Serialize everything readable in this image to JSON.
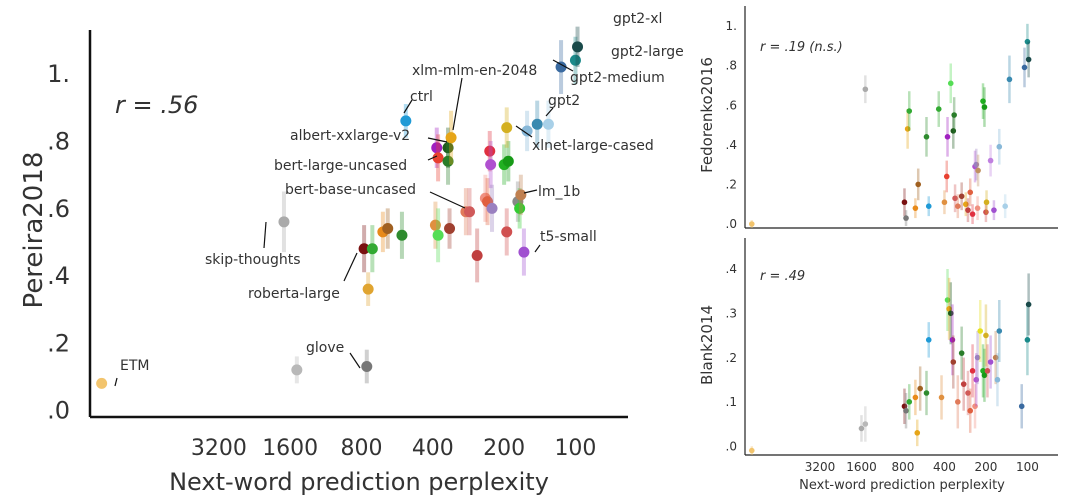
{
  "chart_data": [
    {
      "type": "scatter",
      "panel": "main",
      "xlabel": "Next-word prediction perplexity",
      "ylabel": "Pereira2018",
      "annotation": "r = .56",
      "x_scale": "log-reversed",
      "xticks": [
        "3200",
        "1600",
        "800",
        "400",
        "200",
        "100"
      ],
      "xtick_values": [
        3200,
        1600,
        800,
        400,
        200,
        100
      ],
      "yticks": [
        ".0",
        ".2",
        ".4",
        ".6",
        ".8",
        "1."
      ],
      "ytick_values": [
        0,
        0.2,
        0.4,
        0.6,
        0.8,
        1.0
      ],
      "ylim": [
        -0.02,
        1.13
      ],
      "xlim": [
        11200,
        60
      ],
      "points": [
        {
          "x": 10000,
          "y": 0.08,
          "err": 0.01,
          "color": "#f2c46d",
          "label": "ETM"
        },
        {
          "x": 1500,
          "y": 0.12,
          "err": 0.04,
          "color": "#b8b8b8",
          "label": ""
        },
        {
          "x": 1700,
          "y": 0.56,
          "err": 0.09,
          "color": "#aaaaaa",
          "label": "skip-thoughts"
        },
        {
          "x": 760,
          "y": 0.13,
          "err": 0.05,
          "color": "#777777",
          "label": "glove"
        },
        {
          "x": 780,
          "y": 0.48,
          "err": 0.07,
          "color": "#7a1010",
          "label": "roberta-large"
        },
        {
          "x": 750,
          "y": 0.36,
          "err": 0.05,
          "color": "#e0a430",
          "label": ""
        },
        {
          "x": 720,
          "y": 0.48,
          "err": 0.07,
          "color": "#33aa33",
          "label": ""
        },
        {
          "x": 650,
          "y": 0.53,
          "err": 0.06,
          "color": "#e88a1a",
          "label": ""
        },
        {
          "x": 620,
          "y": 0.54,
          "err": 0.06,
          "color": "#a06020",
          "label": ""
        },
        {
          "x": 540,
          "y": 0.52,
          "err": 0.07,
          "color": "#2e8b2e",
          "label": ""
        },
        {
          "x": 520,
          "y": 0.86,
          "err": 0.05,
          "color": "#1f9ad6",
          "label": "ctrl"
        },
        {
          "x": 390,
          "y": 0.55,
          "err": 0.07,
          "color": "#e09040",
          "label": ""
        },
        {
          "x": 380,
          "y": 0.52,
          "err": 0.08,
          "color": "#55dd55",
          "label": ""
        },
        {
          "x": 385,
          "y": 0.78,
          "err": 0.06,
          "color": "#a020c0",
          "label": ""
        },
        {
          "x": 380,
          "y": 0.75,
          "err": 0.07,
          "color": "#e84030",
          "label": ""
        },
        {
          "x": 345,
          "y": 0.78,
          "err": 0.06,
          "color": "#1e5a1e",
          "label": ""
        },
        {
          "x": 345,
          "y": 0.74,
          "err": 0.07,
          "color": "#2a7d2a",
          "label": ""
        },
        {
          "x": 335,
          "y": 0.81,
          "err": 0.08,
          "color": "#e6a517",
          "label": ""
        },
        {
          "x": 340,
          "y": 0.54,
          "err": 0.06,
          "color": "#a04030",
          "label": ""
        },
        {
          "x": 290,
          "y": 0.59,
          "err": 0.07,
          "color": "#e07a5a",
          "label": ""
        },
        {
          "x": 280,
          "y": 0.59,
          "err": 0.07,
          "color": "#d05a5a",
          "label": ""
        },
        {
          "x": 260,
          "y": 0.46,
          "err": 0.08,
          "color": "#c04040",
          "label": ""
        },
        {
          "x": 240,
          "y": 0.63,
          "err": 0.07,
          "color": "#f09080",
          "label": ""
        },
        {
          "x": 235,
          "y": 0.62,
          "err": 0.07,
          "color": "#e06040",
          "label": ""
        },
        {
          "x": 230,
          "y": 0.77,
          "err": 0.06,
          "color": "#e03040",
          "label": ""
        },
        {
          "x": 228,
          "y": 0.73,
          "err": 0.07,
          "color": "#b050d0",
          "label": ""
        },
        {
          "x": 225,
          "y": 0.6,
          "err": 0.07,
          "color": "#9a80c0",
          "label": ""
        },
        {
          "x": 200,
          "y": 0.73,
          "err": 0.06,
          "color": "#22b022",
          "label": ""
        },
        {
          "x": 192,
          "y": 0.74,
          "err": 0.06,
          "color": "#179a17",
          "label": ""
        },
        {
          "x": 195,
          "y": 0.53,
          "err": 0.07,
          "color": "#d05050",
          "label": ""
        },
        {
          "x": 195,
          "y": 0.84,
          "err": 0.06,
          "color": "#d4b020",
          "label": "xlnet-large-cased"
        },
        {
          "x": 175,
          "y": 0.62,
          "err": 0.06,
          "color": "#888888",
          "label": ""
        },
        {
          "x": 172,
          "y": 0.6,
          "err": 0.06,
          "color": "#33cc33",
          "label": ""
        },
        {
          "x": 170,
          "y": 0.64,
          "err": 0.06,
          "color": "#c08050",
          "label": "lm_1b"
        },
        {
          "x": 165,
          "y": 0.47,
          "err": 0.07,
          "color": "#a050d0",
          "label": "t5-small"
        },
        {
          "x": 160,
          "y": 0.83,
          "err": 0.06,
          "color": "#88b8d8",
          "label": ""
        },
        {
          "x": 145,
          "y": 0.85,
          "err": 0.07,
          "color": "#3a8ab0",
          "label": "gpt2"
        },
        {
          "x": 130,
          "y": 0.85,
          "err": 0.07,
          "color": "#a8d0e8",
          "label": ""
        },
        {
          "x": 115,
          "y": 1.02,
          "err": 0.08,
          "color": "#3a6aa0",
          "label": "gpt2-medium"
        },
        {
          "x": 100,
          "y": 1.04,
          "err": 0.07,
          "color": "#1a8a8a",
          "label": "gpt2-large"
        },
        {
          "x": 98,
          "y": 1.08,
          "err": 0.06,
          "color": "#1a4a4a",
          "label": "gpt2-xl"
        }
      ],
      "annotations_text": [
        "xlm-mlm-en-2048",
        "albert-xxlarge-v2",
        "bert-large-uncased",
        "bert-base-uncased"
      ]
    },
    {
      "type": "scatter",
      "panel": "top-right",
      "ylabel": "Fedorenko2016",
      "annotation": "r = .19 (n.s.)",
      "x_scale": "log-reversed",
      "yticks": [
        ".0",
        ".2",
        ".4",
        ".6",
        ".8",
        "1."
      ],
      "ytick_values": [
        0,
        0.2,
        0.4,
        0.6,
        0.8,
        1.0
      ],
      "ylim": [
        -0.02,
        1.1
      ],
      "xlim": [
        11200,
        60
      ],
      "points": [
        {
          "x": 10000,
          "y": 0.0,
          "err": 0.02,
          "color": "#f2c46d"
        },
        {
          "x": 1500,
          "y": 0.68,
          "err": 0.07,
          "color": "#aaaaaa"
        },
        {
          "x": 780,
          "y": 0.11,
          "err": 0.07,
          "color": "#7a1010"
        },
        {
          "x": 760,
          "y": 0.03,
          "err": 0.04,
          "color": "#777777"
        },
        {
          "x": 740,
          "y": 0.48,
          "err": 0.1,
          "color": "#e6a517"
        },
        {
          "x": 720,
          "y": 0.57,
          "err": 0.1,
          "color": "#33aa33"
        },
        {
          "x": 650,
          "y": 0.08,
          "err": 0.05,
          "color": "#e88a1a"
        },
        {
          "x": 620,
          "y": 0.2,
          "err": 0.08,
          "color": "#a06020"
        },
        {
          "x": 540,
          "y": 0.44,
          "err": 0.1,
          "color": "#2e8b2e"
        },
        {
          "x": 520,
          "y": 0.09,
          "err": 0.05,
          "color": "#1f9ad6"
        },
        {
          "x": 440,
          "y": 0.58,
          "err": 0.09,
          "color": "#33aa33"
        },
        {
          "x": 400,
          "y": 0.11,
          "err": 0.06,
          "color": "#e09040"
        },
        {
          "x": 385,
          "y": 0.24,
          "err": 0.08,
          "color": "#e84030"
        },
        {
          "x": 380,
          "y": 0.44,
          "err": 0.1,
          "color": "#a020c0"
        },
        {
          "x": 360,
          "y": 0.71,
          "err": 0.1,
          "color": "#55dd55"
        },
        {
          "x": 345,
          "y": 0.47,
          "err": 0.09,
          "color": "#1e5a1e"
        },
        {
          "x": 340,
          "y": 0.55,
          "err": 0.09,
          "color": "#2a7d2a"
        },
        {
          "x": 335,
          "y": 0.13,
          "err": 0.07,
          "color": "#d05a5a"
        },
        {
          "x": 320,
          "y": 0.09,
          "err": 0.06,
          "color": "#e07a5a"
        },
        {
          "x": 300,
          "y": 0.14,
          "err": 0.07,
          "color": "#a04030"
        },
        {
          "x": 280,
          "y": 0.1,
          "err": 0.06,
          "color": "#e6a517"
        },
        {
          "x": 270,
          "y": 0.07,
          "err": 0.06,
          "color": "#c04040"
        },
        {
          "x": 260,
          "y": 0.16,
          "err": 0.07,
          "color": "#e06040"
        },
        {
          "x": 250,
          "y": 0.05,
          "err": 0.05,
          "color": "#e03040"
        },
        {
          "x": 240,
          "y": 0.29,
          "err": 0.08,
          "color": "#b050d0"
        },
        {
          "x": 235,
          "y": 0.3,
          "err": 0.08,
          "color": "#9a80c0"
        },
        {
          "x": 230,
          "y": 0.08,
          "err": 0.06,
          "color": "#f09080"
        },
        {
          "x": 228,
          "y": 0.27,
          "err": 0.08,
          "color": "#c09060"
        },
        {
          "x": 210,
          "y": 0.62,
          "err": 0.09,
          "color": "#22b022"
        },
        {
          "x": 205,
          "y": 0.59,
          "err": 0.1,
          "color": "#179a17"
        },
        {
          "x": 200,
          "y": 0.06,
          "err": 0.05,
          "color": "#d05050"
        },
        {
          "x": 198,
          "y": 0.11,
          "err": 0.06,
          "color": "#d4b020"
        },
        {
          "x": 185,
          "y": 0.32,
          "err": 0.08,
          "color": "#c080e0"
        },
        {
          "x": 175,
          "y": 0.07,
          "err": 0.05,
          "color": "#a050d0"
        },
        {
          "x": 160,
          "y": 0.39,
          "err": 0.09,
          "color": "#88b8d8"
        },
        {
          "x": 145,
          "y": 0.09,
          "err": 0.06,
          "color": "#a8d0e8"
        },
        {
          "x": 135,
          "y": 0.73,
          "err": 0.12,
          "color": "#3a8ab0"
        },
        {
          "x": 105,
          "y": 0.79,
          "err": 0.1,
          "color": "#3a6aa0"
        },
        {
          "x": 100,
          "y": 0.92,
          "err": 0.09,
          "color": "#1a8a8a"
        },
        {
          "x": 98,
          "y": 0.83,
          "err": 0.09,
          "color": "#1a4a4a"
        }
      ]
    },
    {
      "type": "scatter",
      "panel": "bottom-right",
      "xlabel": "Next-word prediction perplexity",
      "ylabel": "Blank2014",
      "annotation": "r = .49",
      "x_scale": "log-reversed",
      "xticks": [
        "3200",
        "1600",
        "800",
        "400",
        "200",
        "100"
      ],
      "xtick_values": [
        3200,
        1600,
        800,
        400,
        200,
        100
      ],
      "yticks": [
        ".0",
        ".1",
        ".2",
        ".3",
        ".4"
      ],
      "ytick_values": [
        0,
        0.1,
        0.2,
        0.3,
        0.4
      ],
      "ylim": [
        -0.02,
        0.47
      ],
      "xlim": [
        11200,
        60
      ],
      "points": [
        {
          "x": 10000,
          "y": -0.01,
          "err": 0.01,
          "color": "#f2c46d"
        },
        {
          "x": 1600,
          "y": 0.04,
          "err": 0.03,
          "color": "#aaaaaa"
        },
        {
          "x": 1500,
          "y": 0.05,
          "err": 0.04,
          "color": "#b8b8b8"
        },
        {
          "x": 780,
          "y": 0.09,
          "err": 0.04,
          "color": "#7a1010"
        },
        {
          "x": 760,
          "y": 0.08,
          "err": 0.04,
          "color": "#777777"
        },
        {
          "x": 720,
          "y": 0.1,
          "err": 0.04,
          "color": "#33aa33"
        },
        {
          "x": 650,
          "y": 0.11,
          "err": 0.04,
          "color": "#e88a1a"
        },
        {
          "x": 630,
          "y": 0.03,
          "err": 0.03,
          "color": "#e6a517"
        },
        {
          "x": 600,
          "y": 0.13,
          "err": 0.05,
          "color": "#a06020"
        },
        {
          "x": 540,
          "y": 0.12,
          "err": 0.05,
          "color": "#2e8b2e"
        },
        {
          "x": 520,
          "y": 0.24,
          "err": 0.04,
          "color": "#1f9ad6"
        },
        {
          "x": 420,
          "y": 0.11,
          "err": 0.05,
          "color": "#e09040"
        },
        {
          "x": 380,
          "y": 0.33,
          "err": 0.07,
          "color": "#55dd55"
        },
        {
          "x": 370,
          "y": 0.31,
          "err": 0.07,
          "color": "#e6a517"
        },
        {
          "x": 360,
          "y": 0.3,
          "err": 0.07,
          "color": "#1e5a1e"
        },
        {
          "x": 350,
          "y": 0.24,
          "err": 0.08,
          "color": "#a020c0"
        },
        {
          "x": 345,
          "y": 0.19,
          "err": 0.06,
          "color": "#a04030"
        },
        {
          "x": 320,
          "y": 0.1,
          "err": 0.06,
          "color": "#e07a5a"
        },
        {
          "x": 300,
          "y": 0.21,
          "err": 0.06,
          "color": "#2a7d2a"
        },
        {
          "x": 290,
          "y": 0.14,
          "err": 0.06,
          "color": "#c04040"
        },
        {
          "x": 270,
          "y": 0.12,
          "err": 0.05,
          "color": "#d05a5a"
        },
        {
          "x": 260,
          "y": 0.08,
          "err": 0.05,
          "color": "#e06040"
        },
        {
          "x": 250,
          "y": 0.17,
          "err": 0.06,
          "color": "#e03040"
        },
        {
          "x": 240,
          "y": 0.09,
          "err": 0.05,
          "color": "#f09080"
        },
        {
          "x": 235,
          "y": 0.15,
          "err": 0.06,
          "color": "#b050d0"
        },
        {
          "x": 230,
          "y": 0.2,
          "err": 0.06,
          "color": "#9a80c0"
        },
        {
          "x": 220,
          "y": 0.26,
          "err": 0.07,
          "color": "#e6e020"
        },
        {
          "x": 210,
          "y": 0.17,
          "err": 0.06,
          "color": "#22b022"
        },
        {
          "x": 205,
          "y": 0.16,
          "err": 0.06,
          "color": "#179a17"
        },
        {
          "x": 200,
          "y": 0.25,
          "err": 0.07,
          "color": "#d4b020"
        },
        {
          "x": 195,
          "y": 0.17,
          "err": 0.06,
          "color": "#d05050"
        },
        {
          "x": 185,
          "y": 0.19,
          "err": 0.06,
          "color": "#a050d0"
        },
        {
          "x": 170,
          "y": 0.2,
          "err": 0.06,
          "color": "#c08050"
        },
        {
          "x": 165,
          "y": 0.15,
          "err": 0.06,
          "color": "#88b8d8"
        },
        {
          "x": 160,
          "y": 0.26,
          "err": 0.07,
          "color": "#3a8ab0"
        },
        {
          "x": 110,
          "y": 0.09,
          "err": 0.05,
          "color": "#3a6aa0"
        },
        {
          "x": 100,
          "y": 0.24,
          "err": 0.08,
          "color": "#1a8a8a"
        },
        {
          "x": 98,
          "y": 0.32,
          "err": 0.07,
          "color": "#1a4a4a"
        }
      ]
    }
  ]
}
